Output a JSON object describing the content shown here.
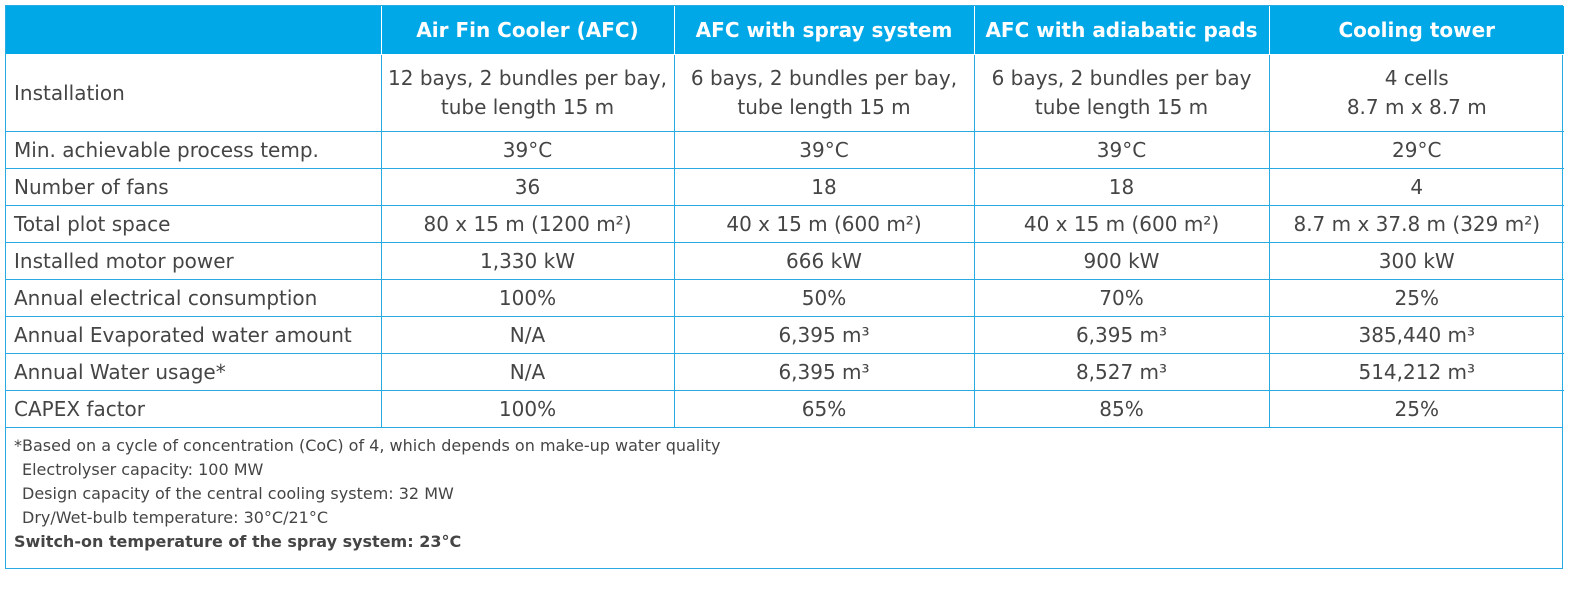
{
  "table": {
    "header": [
      "",
      "Air Fin Cooler (AFC)",
      "AFC with spray system",
      "AFC with adiabatic pads",
      "Cooling tower"
    ],
    "rows": [
      [
        [
          "Installation"
        ],
        [
          "12 bays, 2 bundles per bay,",
          "tube length 15 m"
        ],
        [
          "6 bays, 2 bundles per bay,",
          "tube length 15 m"
        ],
        [
          "6 bays, 2 bundles per bay",
          "tube length 15 m"
        ],
        [
          "4 cells",
          "8.7 m x 8.7 m"
        ]
      ],
      [
        [
          "Min. achievable process temp."
        ],
        [
          "39°C"
        ],
        [
          "39°C"
        ],
        [
          "39°C"
        ],
        [
          "29°C"
        ]
      ],
      [
        [
          "Number of fans"
        ],
        [
          "36"
        ],
        [
          "18"
        ],
        [
          "18"
        ],
        [
          "4"
        ]
      ],
      [
        [
          "Total plot space"
        ],
        [
          "80 x 15 m (1200 m²)"
        ],
        [
          "40 x 15 m (600 m²)"
        ],
        [
          "40 x 15 m (600 m²)"
        ],
        [
          "8.7 m x 37.8 m (329 m²)"
        ]
      ],
      [
        [
          "Installed motor power"
        ],
        [
          "1,330 kW"
        ],
        [
          "666 kW"
        ],
        [
          "900 kW"
        ],
        [
          "300 kW"
        ]
      ],
      [
        [
          "Annual electrical consumption"
        ],
        [
          "100%"
        ],
        [
          "50%"
        ],
        [
          "70%"
        ],
        [
          "25%"
        ]
      ],
      [
        [
          "Annual Evaporated water amount"
        ],
        [
          "N/A"
        ],
        [
          "6,395 m³"
        ],
        [
          "6,395 m³"
        ],
        [
          "385,440 m³"
        ]
      ],
      [
        [
          "Annual Water usage*"
        ],
        [
          "N/A"
        ],
        [
          "6,395 m³"
        ],
        [
          "8,527 m³"
        ],
        [
          "514,212 m³"
        ]
      ],
      [
        [
          "CAPEX factor"
        ],
        [
          "100%"
        ],
        [
          "65%"
        ],
        [
          "85%"
        ],
        [
          "25%"
        ]
      ]
    ],
    "notes": [
      "*Based on a cycle of concentration (CoC) of 4, which depends on make-up water quality",
      "Electrolyser capacity: 100 MW",
      "Design capacity of the central cooling system: 32 MW",
      "Dry/Wet-bulb temperature: 30°C/21°C",
      "Switch-on temperature of the spray system: 23°C"
    ]
  }
}
